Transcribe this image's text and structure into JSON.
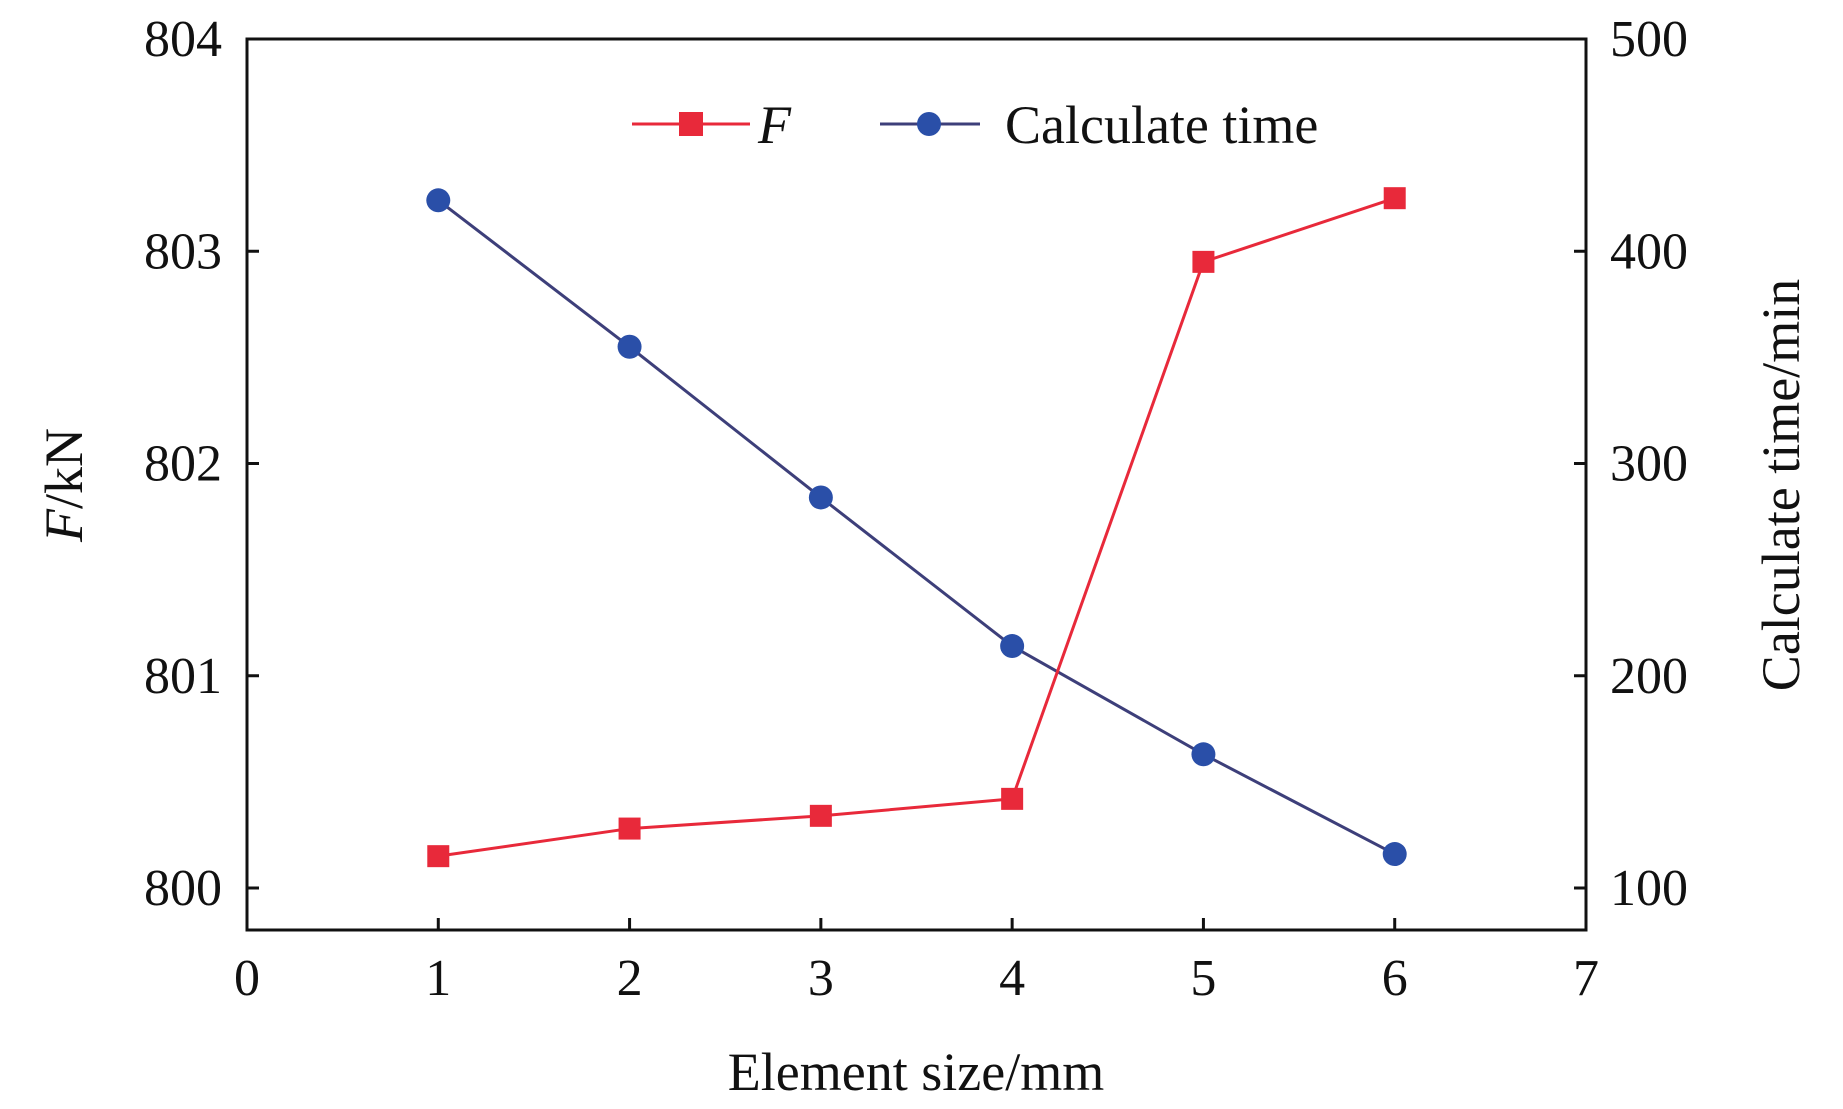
{
  "chart_data": {
    "type": "line",
    "x_label_prefix": "Element size",
    "x_label_unit": "/mm",
    "y_label_italic": "F",
    "y_label_unit": "/kN",
    "y2_label": "Calculate time/min",
    "xlim": [
      0,
      7
    ],
    "ylim": [
      800,
      804
    ],
    "y2lim": [
      80,
      500
    ],
    "x_ticks": [
      0,
      1,
      2,
      3,
      4,
      5,
      6,
      7
    ],
    "y_ticks": [
      800,
      801,
      802,
      803,
      804
    ],
    "y2_ticks": [
      100,
      200,
      300,
      400,
      500
    ],
    "grid": false,
    "legend_position": "top-center",
    "series": [
      {
        "name": "F",
        "axis": "left",
        "marker": "square",
        "color": "#e8293a",
        "x": [
          1,
          2,
          3,
          4,
          5,
          6
        ],
        "y": [
          800.15,
          800.28,
          800.34,
          800.42,
          802.95,
          803.25
        ]
      },
      {
        "name": "Calculate time",
        "axis": "right",
        "marker": "circle",
        "color": "#2a4fa8",
        "line_color": "#3d3f7a",
        "x": [
          1,
          2,
          3,
          4,
          5,
          6
        ],
        "y": [
          424,
          355,
          284,
          214,
          163,
          116
        ]
      }
    ]
  }
}
